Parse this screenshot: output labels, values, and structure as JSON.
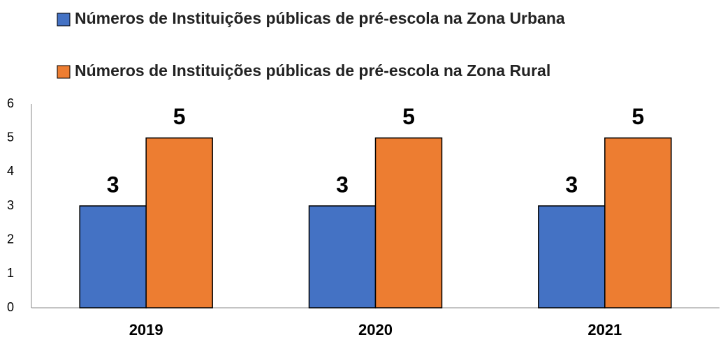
{
  "chart_data": {
    "type": "bar",
    "categories": [
      "2019",
      "2020",
      "2021"
    ],
    "series": [
      {
        "name": "Números de Instituições públicas de pré-escola na Zona Urbana",
        "color": "#4472c4",
        "values": [
          3,
          3,
          3
        ]
      },
      {
        "name": "Números de Instituições públicas de pré-escola na Zona Rural",
        "color": "#ed7d31",
        "values": [
          5,
          5,
          5
        ]
      }
    ],
    "ylim": [
      0,
      6
    ],
    "yticks": [
      0,
      1,
      2,
      3,
      4,
      5,
      6
    ],
    "grid": false,
    "legend": "top"
  }
}
